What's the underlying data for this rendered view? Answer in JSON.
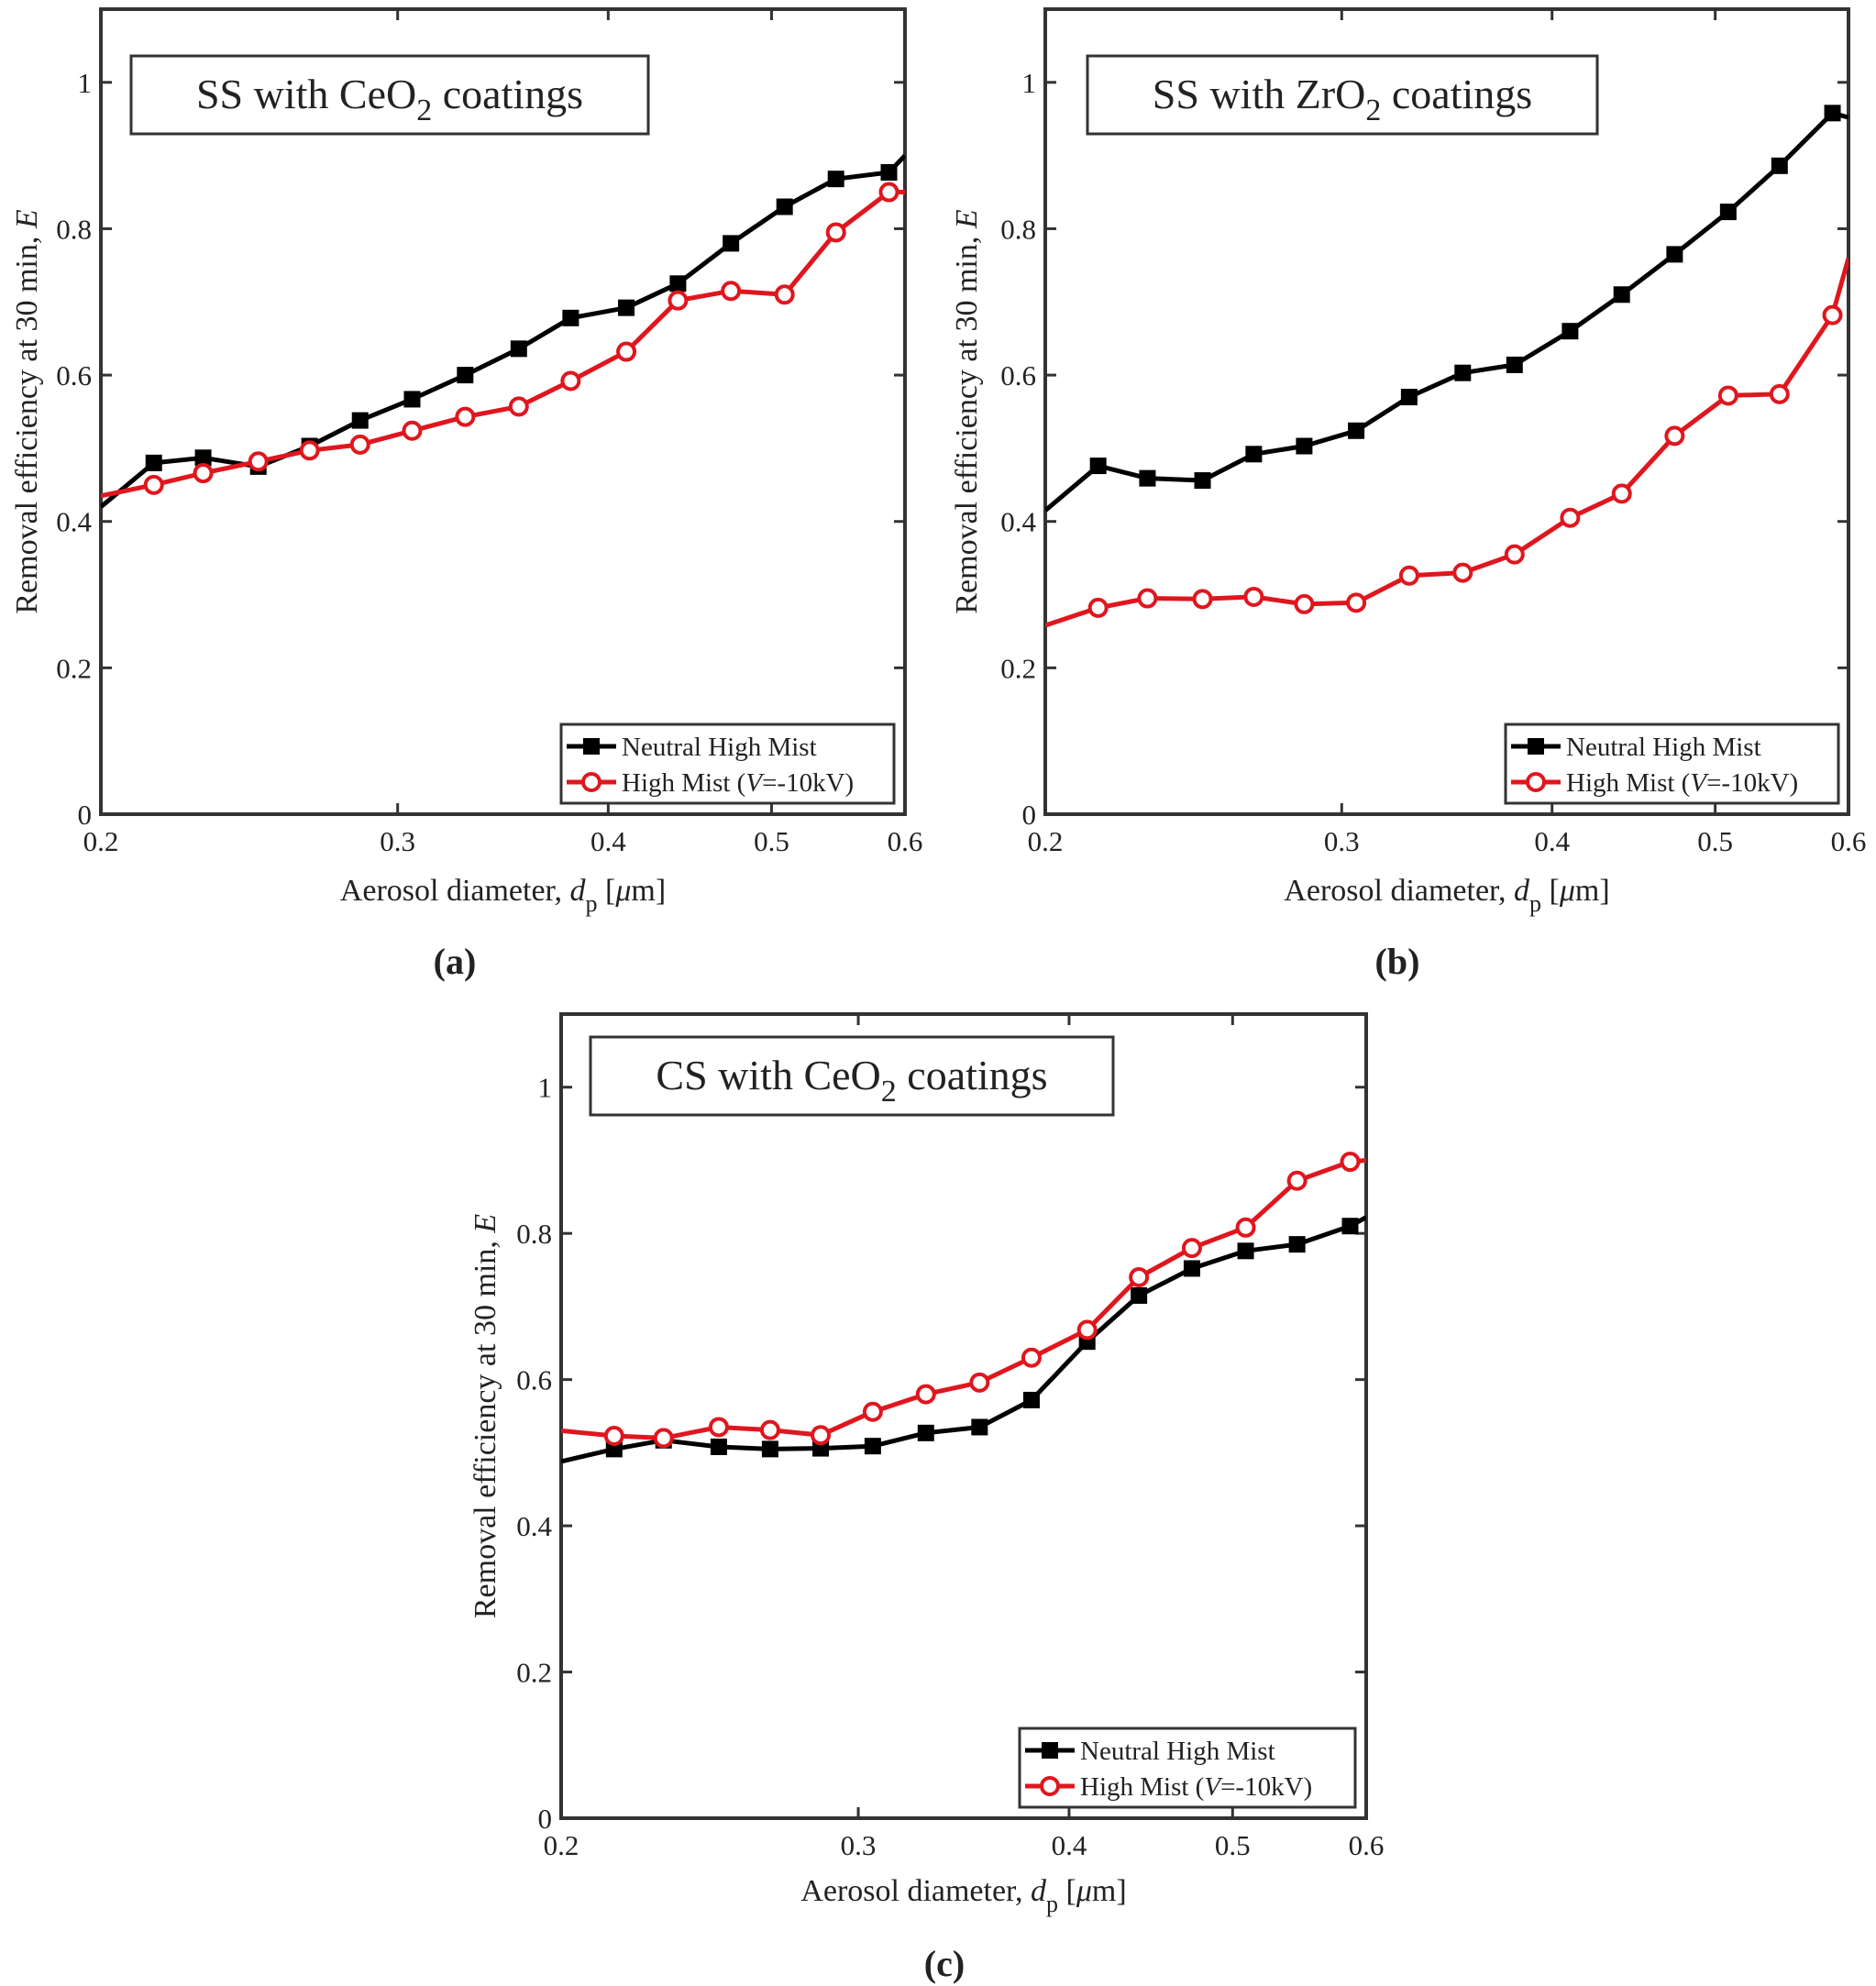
{
  "figure": {
    "panels": [
      "a",
      "b",
      "c"
    ]
  },
  "series_styles": {
    "neutral": {
      "color": "#000000",
      "marker": "square"
    },
    "charged": {
      "color": "#e0161e",
      "marker": "circle"
    }
  },
  "chart_data": [
    {
      "id": "a",
      "type": "line",
      "panel_label": "(a)",
      "title": {
        "prefix": "SS with CeO",
        "subscript": "2",
        "suffix": " coatings"
      },
      "xlabel": {
        "text": "Aerosol diameter, ",
        "var": "d",
        "sub": "p",
        "unit": " [",
        "mu": "μ",
        "unit_end": "m]"
      },
      "ylabel": {
        "text": "Removal efficiency at 30 min, ",
        "var": "E"
      },
      "x_scale": "log",
      "xlim": [
        0.2,
        0.6
      ],
      "ylim": [
        0,
        1.1
      ],
      "x_ticks": [
        0.2,
        0.3,
        0.4,
        0.5,
        0.6
      ],
      "x_tick_labels": [
        "0.2",
        "0.3",
        "0.4",
        "0.5",
        "0.6"
      ],
      "y_ticks": [
        0,
        0.2,
        0.4,
        0.6,
        0.8,
        1
      ],
      "y_tick_labels": [
        "0",
        "0.2",
        "0.4",
        "0.6",
        "0.8",
        "1"
      ],
      "legend": {
        "position": "bottom-right",
        "entries": [
          {
            "series": 0,
            "text": "Neutral High Mist"
          },
          {
            "series": 1,
            "text_pre": "High Mist (",
            "var": "V",
            "text_post": "=-10kV)"
          }
        ]
      },
      "series": [
        {
          "name": "Neutral High Mist",
          "style": "neutral",
          "x": [
            0.2,
            0.215,
            0.23,
            0.248,
            0.266,
            0.285,
            0.306,
            0.329,
            0.354,
            0.38,
            0.41,
            0.44,
            0.473,
            0.509,
            0.546,
            0.587,
            0.6
          ],
          "values": [
            0.42,
            0.48,
            0.487,
            0.475,
            0.503,
            0.538,
            0.567,
            0.6,
            0.636,
            0.678,
            0.692,
            0.725,
            0.78,
            0.83,
            0.868,
            0.877,
            0.9
          ],
          "marked": [
            false,
            true,
            true,
            true,
            true,
            true,
            true,
            true,
            true,
            true,
            true,
            true,
            true,
            true,
            true,
            true,
            false
          ]
        },
        {
          "name": "High Mist (V=-10kV)",
          "style": "charged",
          "x": [
            0.2,
            0.215,
            0.23,
            0.248,
            0.266,
            0.285,
            0.306,
            0.329,
            0.354,
            0.38,
            0.41,
            0.44,
            0.473,
            0.509,
            0.546,
            0.587,
            0.6
          ],
          "values": [
            0.435,
            0.45,
            0.466,
            0.482,
            0.497,
            0.505,
            0.524,
            0.543,
            0.557,
            0.592,
            0.632,
            0.702,
            0.715,
            0.71,
            0.795,
            0.85,
            0.85
          ],
          "marked": [
            false,
            true,
            true,
            true,
            true,
            true,
            true,
            true,
            true,
            true,
            true,
            true,
            true,
            true,
            true,
            true,
            false
          ]
        }
      ]
    },
    {
      "id": "b",
      "type": "line",
      "panel_label": "(b)",
      "title": {
        "prefix": "SS with ZrO",
        "subscript": "2",
        "suffix": " coatings"
      },
      "xlabel": {
        "text": "Aerosol diameter, ",
        "var": "d",
        "sub": "p",
        "unit": " [",
        "mu": "μ",
        "unit_end": "m]"
      },
      "ylabel": {
        "text": "Removal efficiency at 30 min, ",
        "var": "E"
      },
      "x_scale": "log",
      "xlim": [
        0.2,
        0.6
      ],
      "ylim": [
        0,
        1.1
      ],
      "x_ticks": [
        0.2,
        0.3,
        0.4,
        0.5,
        0.6
      ],
      "x_tick_labels": [
        "0.2",
        "0.3",
        "0.4",
        "0.5",
        "0.6"
      ],
      "y_ticks": [
        0,
        0.2,
        0.4,
        0.6,
        0.8,
        1
      ],
      "y_tick_labels": [
        "0",
        "0.2",
        "0.4",
        "0.6",
        "0.8",
        "1"
      ],
      "legend": {
        "position": "bottom-right",
        "entries": [
          {
            "series": 0,
            "text": "Neutral High Mist"
          },
          {
            "series": 1,
            "text_pre": "High Mist (",
            "var": "V",
            "text_post": "=-10kV)"
          }
        ]
      },
      "series": [
        {
          "name": "Neutral High Mist",
          "style": "neutral",
          "x": [
            0.2,
            0.215,
            0.23,
            0.248,
            0.266,
            0.285,
            0.306,
            0.329,
            0.354,
            0.38,
            0.41,
            0.44,
            0.473,
            0.509,
            0.546,
            0.587,
            0.6
          ],
          "values": [
            0.415,
            0.476,
            0.459,
            0.456,
            0.492,
            0.503,
            0.524,
            0.57,
            0.603,
            0.614,
            0.66,
            0.71,
            0.765,
            0.823,
            0.886,
            0.958,
            0.952
          ],
          "marked": [
            false,
            true,
            true,
            true,
            true,
            true,
            true,
            true,
            true,
            true,
            true,
            true,
            true,
            true,
            true,
            true,
            false
          ]
        },
        {
          "name": "High Mist (V=-10kV)",
          "style": "charged",
          "x": [
            0.2,
            0.215,
            0.23,
            0.248,
            0.266,
            0.285,
            0.306,
            0.329,
            0.354,
            0.38,
            0.41,
            0.44,
            0.473,
            0.509,
            0.546,
            0.587,
            0.6
          ],
          "values": [
            0.258,
            0.282,
            0.295,
            0.294,
            0.297,
            0.287,
            0.289,
            0.326,
            0.33,
            0.355,
            0.405,
            0.438,
            0.517,
            0.572,
            0.574,
            0.682,
            0.76
          ],
          "marked": [
            false,
            true,
            true,
            true,
            true,
            true,
            true,
            true,
            true,
            true,
            true,
            true,
            true,
            true,
            true,
            true,
            false
          ]
        }
      ]
    },
    {
      "id": "c",
      "type": "line",
      "panel_label": "(c)",
      "title": {
        "prefix": "CS with CeO",
        "subscript": "2",
        "suffix": " coatings"
      },
      "xlabel": {
        "text": "Aerosol diameter, ",
        "var": "d",
        "sub": "p",
        "unit": " [",
        "mu": "μ",
        "unit_end": "m]"
      },
      "ylabel": {
        "text": "Removal efficiency at 30 min, ",
        "var": "E"
      },
      "x_scale": "log",
      "xlim": [
        0.2,
        0.6
      ],
      "ylim": [
        0,
        1.1
      ],
      "x_ticks": [
        0.2,
        0.3,
        0.4,
        0.5,
        0.6
      ],
      "x_tick_labels": [
        "0.2",
        "0.3",
        "0.4",
        "0.5",
        "0.6"
      ],
      "y_ticks": [
        0,
        0.2,
        0.4,
        0.6,
        0.8,
        1
      ],
      "y_tick_labels": [
        "0",
        "0.2",
        "0.4",
        "0.6",
        "0.8",
        "1"
      ],
      "legend": {
        "position": "bottom-right",
        "entries": [
          {
            "series": 0,
            "text": "Neutral High Mist"
          },
          {
            "series": 1,
            "text_pre": "High Mist (",
            "var": "V",
            "text_post": "=-10kV)"
          }
        ]
      },
      "series": [
        {
          "name": "Neutral High Mist",
          "style": "neutral",
          "x": [
            0.2,
            0.215,
            0.23,
            0.248,
            0.266,
            0.285,
            0.306,
            0.329,
            0.354,
            0.38,
            0.41,
            0.44,
            0.473,
            0.509,
            0.546,
            0.587,
            0.6
          ],
          "values": [
            0.488,
            0.505,
            0.517,
            0.508,
            0.505,
            0.506,
            0.509,
            0.527,
            0.535,
            0.572,
            0.652,
            0.715,
            0.752,
            0.776,
            0.785,
            0.81,
            0.822
          ],
          "marked": [
            false,
            true,
            true,
            true,
            true,
            true,
            true,
            true,
            true,
            true,
            true,
            true,
            true,
            true,
            true,
            true,
            false
          ]
        },
        {
          "name": "High Mist (V=-10kV)",
          "style": "charged",
          "x": [
            0.2,
            0.215,
            0.23,
            0.248,
            0.266,
            0.285,
            0.306,
            0.329,
            0.354,
            0.38,
            0.41,
            0.44,
            0.473,
            0.509,
            0.546,
            0.587,
            0.6
          ],
          "values": [
            0.53,
            0.523,
            0.52,
            0.535,
            0.531,
            0.524,
            0.556,
            0.58,
            0.596,
            0.63,
            0.668,
            0.74,
            0.78,
            0.808,
            0.872,
            0.898,
            0.9
          ],
          "marked": [
            false,
            true,
            true,
            true,
            true,
            true,
            true,
            true,
            true,
            true,
            true,
            true,
            true,
            true,
            true,
            true,
            false
          ]
        }
      ]
    }
  ]
}
